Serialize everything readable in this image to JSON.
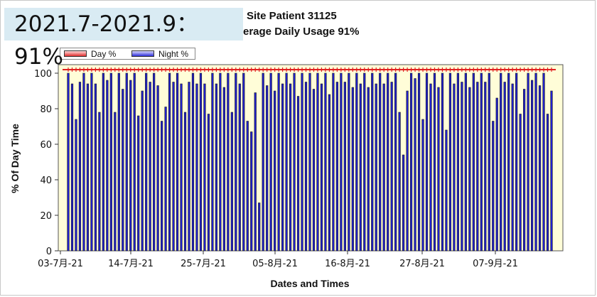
{
  "overlay_label": "2021.7-2021.9：91%",
  "chart_data": {
    "type": "bar",
    "title_line1": "Site Patient 31125",
    "title_line2": "erage Daily Usage 91%",
    "xlabel": "Dates and Times",
    "ylabel": "% Of Day Time",
    "ylim": [
      0,
      100
    ],
    "yticks": [
      0,
      20,
      40,
      60,
      80,
      100
    ],
    "xtick_labels": [
      "03-7月-21",
      "14-7月-21",
      "25-7月-21",
      "05-8月-21",
      "16-8月-21",
      "27-8月-21",
      "07-9月-21"
    ],
    "legend": [
      "Day %",
      "Night %"
    ],
    "plot_background": "#fffdd8",
    "colors": {
      "day": "#e02020",
      "night": "#2020d0"
    },
    "series": [
      {
        "name": "Night %",
        "values": [
          100,
          94,
          74,
          95,
          100,
          94,
          100,
          94,
          78,
          100,
          96,
          100,
          78,
          100,
          91,
          100,
          96,
          100,
          76,
          90,
          100,
          95,
          100,
          93,
          73,
          81,
          100,
          95,
          100,
          94,
          78,
          95,
          100,
          94,
          100,
          94,
          77,
          100,
          94,
          100,
          92,
          100,
          78,
          100,
          94,
          100,
          73,
          67,
          89,
          27,
          100,
          93,
          100,
          90,
          100,
          94,
          100,
          94,
          100,
          87,
          100,
          95,
          100,
          91,
          100,
          94,
          100,
          88,
          100,
          95,
          100,
          95,
          100,
          92,
          100,
          94,
          100,
          92,
          100,
          94,
          100,
          94,
          100,
          95,
          100,
          78,
          54,
          90,
          100,
          97,
          100,
          74,
          100,
          94,
          100,
          92,
          100,
          68,
          100,
          94,
          100,
          95,
          100,
          92,
          100,
          95,
          100,
          95,
          100,
          73,
          86,
          100,
          95,
          100,
          94,
          100,
          77,
          91,
          100,
          96,
          100,
          93,
          100,
          77,
          90
        ]
      },
      {
        "name": "Day %",
        "values": [
          102,
          102,
          102,
          102,
          102,
          102,
          102,
          102,
          102,
          102,
          102,
          102,
          102,
          102,
          102,
          102,
          102,
          102,
          102,
          102,
          102,
          102,
          102,
          102,
          102,
          102,
          102,
          102,
          102,
          102,
          102,
          102,
          102,
          102,
          102,
          102,
          102,
          102,
          102,
          102,
          102,
          102,
          102,
          102,
          102,
          102,
          102,
          102,
          102,
          102,
          102,
          102,
          102,
          102,
          102,
          102,
          102,
          102,
          102,
          102,
          102,
          102,
          102,
          102,
          102,
          102,
          102,
          102,
          102,
          102,
          102,
          102,
          102,
          102,
          102,
          102,
          102,
          102,
          102,
          102,
          102,
          102,
          102,
          102,
          102,
          102,
          102,
          102,
          102,
          102,
          102,
          102,
          102,
          102,
          102,
          102,
          102,
          102,
          102,
          102,
          102,
          102,
          102,
          102,
          102,
          102,
          102,
          102,
          102,
          102,
          102,
          102,
          102,
          102,
          102,
          102,
          102,
          102,
          102,
          102,
          102,
          102,
          102,
          102,
          102
        ]
      }
    ]
  }
}
